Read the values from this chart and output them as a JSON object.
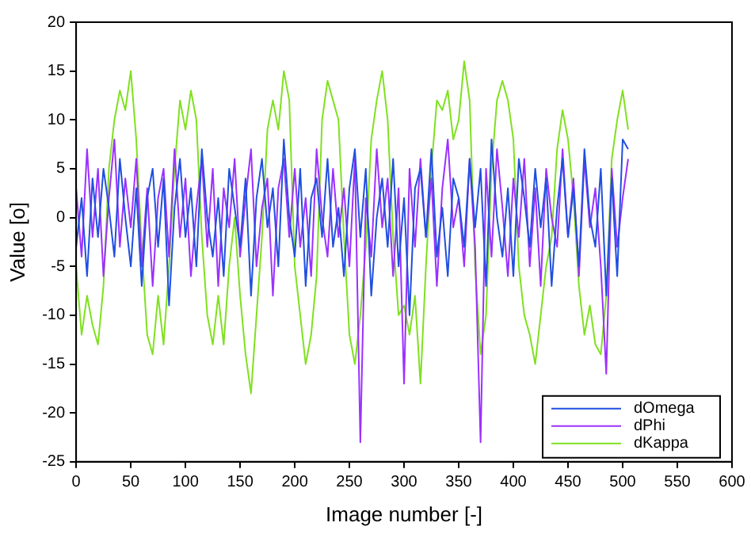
{
  "chart_data": {
    "type": "line",
    "xlabel": "Image number [-]",
    "ylabel": "Value [o]",
    "x": [
      0,
      5,
      10,
      15,
      20,
      25,
      30,
      35,
      40,
      45,
      50,
      55,
      60,
      65,
      70,
      75,
      80,
      85,
      90,
      95,
      100,
      105,
      110,
      115,
      120,
      125,
      130,
      135,
      140,
      145,
      150,
      155,
      160,
      165,
      170,
      175,
      180,
      185,
      190,
      195,
      200,
      205,
      210,
      215,
      220,
      225,
      230,
      235,
      240,
      245,
      250,
      255,
      260,
      265,
      270,
      275,
      280,
      285,
      290,
      295,
      300,
      305,
      310,
      315,
      320,
      325,
      330,
      335,
      340,
      345,
      350,
      355,
      360,
      365,
      370,
      375,
      380,
      385,
      390,
      395,
      400,
      405,
      410,
      415,
      420,
      425,
      430,
      435,
      440,
      445,
      450,
      455,
      460,
      465,
      470,
      475,
      480,
      485,
      490,
      495,
      500,
      505
    ],
    "xlim": [
      0,
      600
    ],
    "xticks": [
      0,
      50,
      100,
      150,
      200,
      250,
      300,
      350,
      400,
      450,
      500,
      550,
      600
    ],
    "ylim": [
      -25,
      20
    ],
    "yticks": [
      -25,
      -20,
      -15,
      -10,
      -5,
      0,
      5,
      10,
      15,
      20
    ],
    "grid": false,
    "legend": "bottom right",
    "marker": "none",
    "line_style": "solid",
    "series": [
      {
        "name": "dOmega",
        "color": "#1f4fe0",
        "values": [
          -3,
          2,
          -6,
          4,
          -2,
          5,
          1,
          -4,
          6,
          0,
          -5,
          3,
          -7,
          2,
          5,
          -3,
          4,
          -9,
          1,
          6,
          -2,
          3,
          -5,
          7,
          0,
          -4,
          2,
          -6,
          5,
          1,
          -3,
          4,
          -8,
          2,
          6,
          -1,
          3,
          -5,
          8,
          0,
          -4,
          5,
          -7,
          2,
          4,
          -2,
          6,
          -3,
          1,
          -6,
          3,
          7,
          -2,
          5,
          -8,
          0,
          4,
          -3,
          6,
          -5,
          2,
          -10,
          3,
          5,
          -2,
          7,
          -4,
          1,
          -6,
          4,
          2,
          -3,
          6,
          -1,
          5,
          -7,
          8,
          0,
          -4,
          3,
          -6,
          6,
          2,
          -3,
          5,
          -1,
          4,
          -7,
          1,
          6,
          -2,
          3,
          -5,
          7,
          0,
          -3,
          5,
          -8,
          4,
          -6,
          8,
          7
        ]
      },
      {
        "name": "dPhi",
        "color": "#9b30ff",
        "values": [
          3,
          -4,
          7,
          -2,
          5,
          -6,
          2,
          8,
          -3,
          4,
          -1,
          6,
          -5,
          3,
          -7,
          2,
          5,
          -4,
          7,
          -2,
          4,
          -6,
          1,
          6,
          -3,
          5,
          -7,
          3,
          -1,
          6,
          -4,
          2,
          7,
          -5,
          1,
          4,
          -8,
          3,
          6,
          -2,
          5,
          -3,
          2,
          -6,
          7,
          0,
          -4,
          5,
          -2,
          3,
          -5,
          6,
          -23,
          2,
          -4,
          7,
          -1,
          4,
          -6,
          3,
          -17,
          5,
          -3,
          6,
          -2,
          4,
          -7,
          3,
          8,
          -1,
          2,
          -5,
          6,
          -3,
          -23,
          5,
          -4,
          7,
          1,
          -6,
          4,
          -2,
          6,
          -5,
          3,
          -7,
          5,
          0,
          -3,
          7,
          -2,
          4,
          -6,
          6,
          -1,
          3,
          -5,
          -16,
          5,
          -3,
          2,
          6
        ]
      },
      {
        "name": "dKappa",
        "color": "#80e020",
        "values": [
          -5,
          -12,
          -8,
          -11,
          -13,
          -7,
          5,
          10,
          13,
          11,
          15,
          8,
          -3,
          -12,
          -14,
          -8,
          -13,
          -5,
          5,
          12,
          9,
          13,
          10,
          -2,
          -10,
          -13,
          -8,
          -13,
          -5,
          0,
          -8,
          -14,
          -18,
          -10,
          -2,
          9,
          12,
          9,
          15,
          12,
          -5,
          -10,
          -15,
          -12,
          -6,
          10,
          14,
          12,
          10,
          -2,
          -12,
          -15,
          -10,
          -3,
          8,
          12,
          15,
          10,
          -2,
          -10,
          -9,
          -12,
          -8,
          -17,
          -5,
          5,
          12,
          11,
          13,
          8,
          10,
          16,
          12,
          -5,
          -14,
          -10,
          5,
          12,
          14,
          12,
          8,
          -5,
          -10,
          -12,
          -15,
          -10,
          -5,
          -2,
          7,
          11,
          8,
          2,
          -7,
          -12,
          -9,
          -13,
          -14,
          -8,
          6,
          10,
          13,
          9
        ]
      }
    ]
  }
}
